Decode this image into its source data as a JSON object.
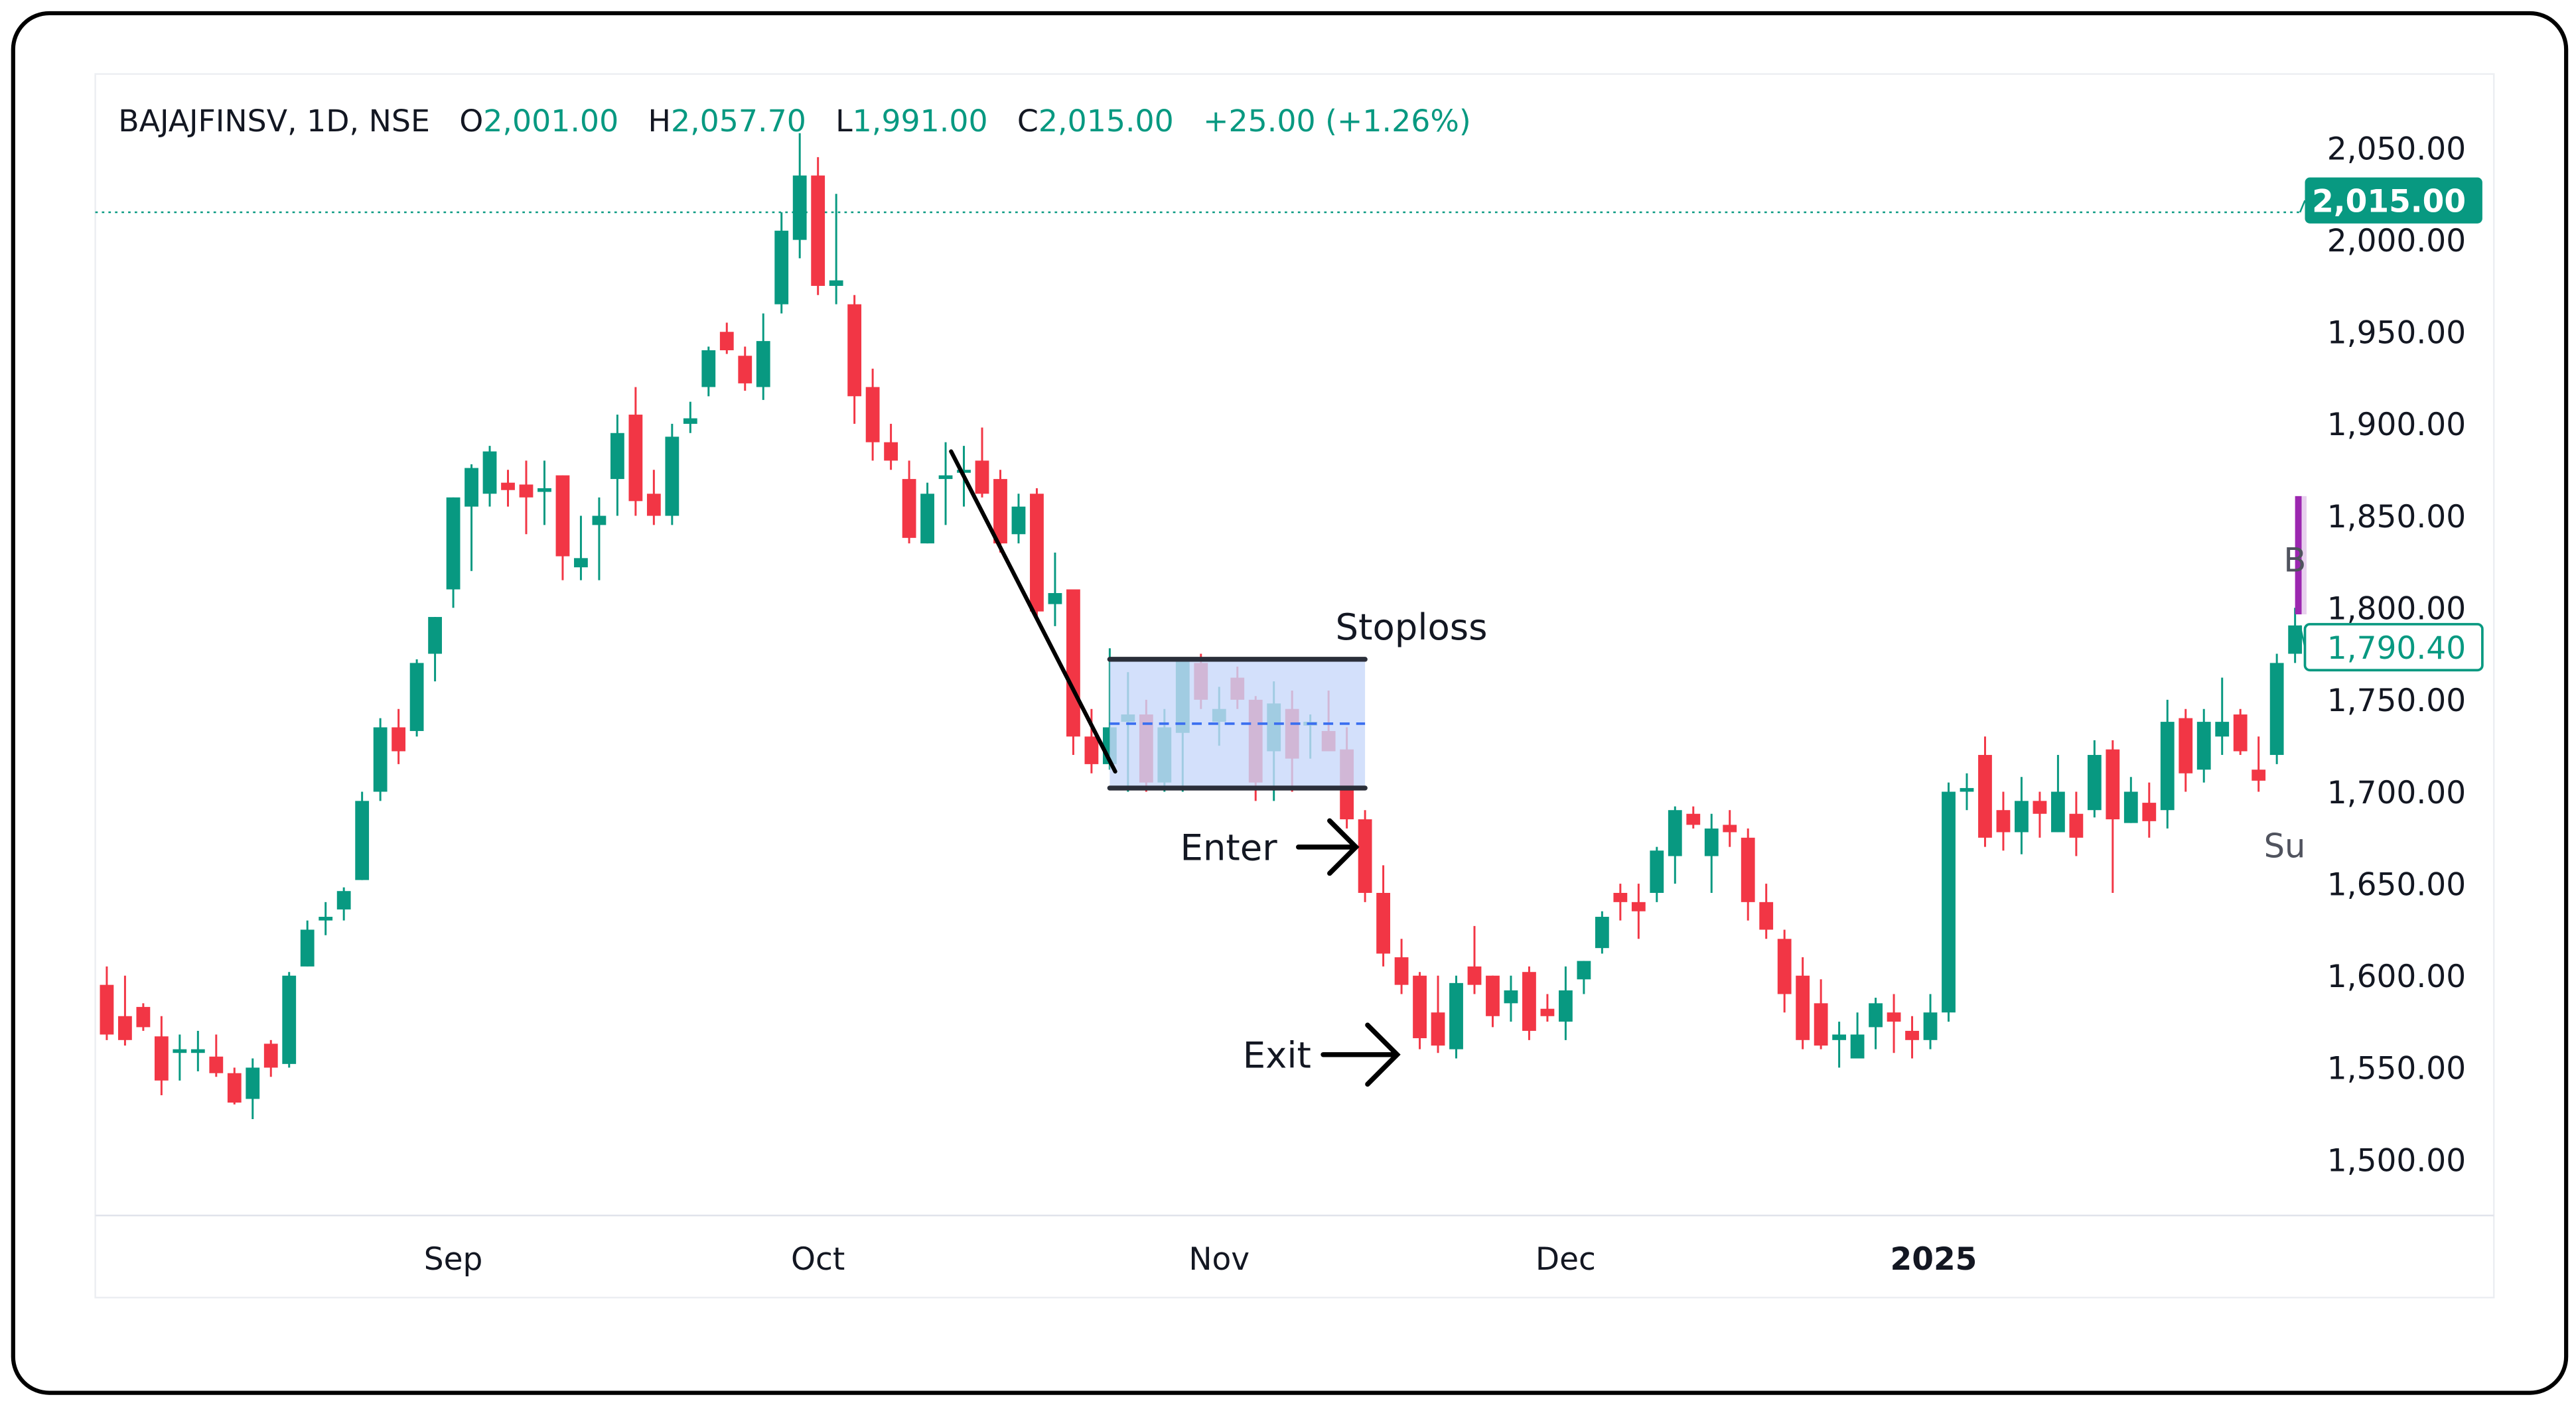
{
  "header": {
    "symbol": "BAJAJFINSV, 1D, NSE",
    "o_label": "O",
    "o_value": "2,001.00",
    "h_label": "H",
    "h_value": "2,057.70",
    "l_label": "L",
    "l_value": "1,991.00",
    "c_label": "C",
    "c_value": "2,015.00",
    "change": "+25.00 (+1.26%)"
  },
  "colors": {
    "up": "#089981",
    "down": "#f23645",
    "box_fill": "#c8d8fa",
    "box_edge": "#2a2e39",
    "mid_dash": "#3b6ff0",
    "bracket": "#9c27b0",
    "text": "#131722"
  },
  "chart_data": {
    "type": "candlestick",
    "title": "",
    "y_ticks": [
      "2,050.00",
      "2,000.00",
      "1,950.00",
      "1,900.00",
      "1,850.00",
      "1,800.00",
      "1,750.00",
      "1,700.00",
      "1,650.00",
      "1,600.00",
      "1,550.00",
      "1,500.00"
    ],
    "y_tick_values": [
      2050,
      2000,
      1950,
      1900,
      1850,
      1800,
      1750,
      1700,
      1650,
      1600,
      1550,
      1500
    ],
    "ylim": [
      1475,
      2080
    ],
    "x_ticks": [
      {
        "label": "Sep",
        "index": 19
      },
      {
        "label": "Oct",
        "index": 39
      },
      {
        "label": "Nov",
        "index": 61
      },
      {
        "label": "Dec",
        "index": 80
      },
      {
        "label": "2025",
        "index": 100,
        "bold": true
      }
    ],
    "last_price_label": "2,015.00",
    "last_price_value": 2015,
    "secondary_price_label": "1,790.40",
    "secondary_price_value": 1790.4,
    "ohlc": [
      [
        1595,
        1605,
        1565,
        1568
      ],
      [
        1578,
        1600,
        1562,
        1565
      ],
      [
        1583,
        1585,
        1570,
        1572
      ],
      [
        1567,
        1578,
        1535,
        1543
      ],
      [
        1558,
        1568,
        1543,
        1560
      ],
      [
        1558,
        1570,
        1548,
        1560
      ],
      [
        1556,
        1568,
        1545,
        1547
      ],
      [
        1547,
        1550,
        1530,
        1531
      ],
      [
        1533,
        1555,
        1522,
        1550
      ],
      [
        1563,
        1565,
        1545,
        1550
      ],
      [
        1552,
        1602,
        1550,
        1600
      ],
      [
        1605,
        1630,
        1605,
        1625
      ],
      [
        1630,
        1640,
        1622,
        1632
      ],
      [
        1636,
        1648,
        1630,
        1646
      ],
      [
        1652,
        1700,
        1652,
        1695
      ],
      [
        1700,
        1740,
        1695,
        1735
      ],
      [
        1735,
        1745,
        1715,
        1722
      ],
      [
        1733,
        1772,
        1730,
        1770
      ],
      [
        1775,
        1795,
        1760,
        1795
      ],
      [
        1810,
        1860,
        1800,
        1860
      ],
      [
        1855,
        1878,
        1820,
        1876
      ],
      [
        1862,
        1888,
        1855,
        1885
      ],
      [
        1868,
        1875,
        1855,
        1864
      ],
      [
        1867,
        1880,
        1840,
        1860
      ],
      [
        1863,
        1880,
        1845,
        1865
      ],
      [
        1872,
        1872,
        1815,
        1828
      ],
      [
        1822,
        1850,
        1815,
        1827
      ],
      [
        1845,
        1860,
        1815,
        1850
      ],
      [
        1870,
        1905,
        1850,
        1895
      ],
      [
        1905,
        1920,
        1850,
        1858
      ],
      [
        1862,
        1875,
        1845,
        1850
      ],
      [
        1850,
        1900,
        1845,
        1893
      ],
      [
        1900,
        1912,
        1895,
        1903
      ],
      [
        1920,
        1942,
        1915,
        1940
      ],
      [
        1950,
        1955,
        1938,
        1940
      ],
      [
        1937,
        1942,
        1918,
        1922
      ],
      [
        1920,
        1960,
        1913,
        1945
      ],
      [
        1965,
        2015,
        1960,
        2005
      ],
      [
        2000,
        2058,
        1990,
        2035
      ],
      [
        2035,
        2045,
        1970,
        1975
      ],
      [
        1975,
        2025,
        1965,
        1978
      ],
      [
        1965,
        1970,
        1900,
        1915
      ],
      [
        1920,
        1930,
        1880,
        1890
      ],
      [
        1890,
        1900,
        1875,
        1880
      ],
      [
        1870,
        1880,
        1835,
        1838
      ],
      [
        1835,
        1868,
        1835,
        1862
      ],
      [
        1870,
        1890,
        1845,
        1872
      ],
      [
        1874,
        1888,
        1855,
        1875
      ],
      [
        1880,
        1898,
        1860,
        1862
      ],
      [
        1870,
        1875,
        1830,
        1835
      ],
      [
        1840,
        1862,
        1835,
        1855
      ],
      [
        1862,
        1865,
        1795,
        1798
      ],
      [
        1802,
        1830,
        1790,
        1808
      ],
      [
        1810,
        1810,
        1720,
        1730
      ],
      [
        1730,
        1745,
        1710,
        1715
      ],
      [
        1715,
        1778,
        1712,
        1735
      ],
      [
        1738,
        1765,
        1700,
        1742
      ],
      [
        1742,
        1750,
        1700,
        1705
      ],
      [
        1705,
        1745,
        1700,
        1735
      ],
      [
        1732,
        1772,
        1700,
        1772
      ],
      [
        1770,
        1775,
        1745,
        1750
      ],
      [
        1738,
        1757,
        1725,
        1745
      ],
      [
        1762,
        1768,
        1745,
        1750
      ],
      [
        1750,
        1752,
        1695,
        1705
      ],
      [
        1722,
        1760,
        1695,
        1748
      ],
      [
        1745,
        1755,
        1700,
        1718
      ],
      [
        1736,
        1742,
        1718,
        1738
      ],
      [
        1733,
        1755,
        1725,
        1722
      ],
      [
        1723,
        1735,
        1680,
        1685
      ],
      [
        1685,
        1690,
        1640,
        1645
      ],
      [
        1645,
        1660,
        1605,
        1612
      ],
      [
        1610,
        1620,
        1590,
        1595
      ],
      [
        1600,
        1602,
        1560,
        1566
      ],
      [
        1580,
        1600,
        1558,
        1562
      ],
      [
        1560,
        1600,
        1555,
        1596
      ],
      [
        1605,
        1627,
        1590,
        1595
      ],
      [
        1600,
        1600,
        1572,
        1578
      ],
      [
        1585,
        1600,
        1575,
        1592
      ],
      [
        1602,
        1605,
        1565,
        1570
      ],
      [
        1582,
        1590,
        1575,
        1578
      ],
      [
        1575,
        1605,
        1565,
        1592
      ],
      [
        1598,
        1608,
        1590,
        1608
      ],
      [
        1615,
        1635,
        1612,
        1632
      ],
      [
        1645,
        1650,
        1630,
        1640
      ],
      [
        1640,
        1650,
        1620,
        1635
      ],
      [
        1645,
        1670,
        1640,
        1668
      ],
      [
        1665,
        1692,
        1650,
        1690
      ],
      [
        1688,
        1692,
        1680,
        1682
      ],
      [
        1665,
        1688,
        1645,
        1680
      ],
      [
        1682,
        1690,
        1670,
        1678
      ],
      [
        1675,
        1680,
        1630,
        1640
      ],
      [
        1640,
        1650,
        1620,
        1625
      ],
      [
        1620,
        1625,
        1580,
        1590
      ],
      [
        1600,
        1610,
        1560,
        1565
      ],
      [
        1585,
        1598,
        1560,
        1562
      ],
      [
        1565,
        1575,
        1550,
        1568
      ],
      [
        1555,
        1580,
        1555,
        1568
      ],
      [
        1572,
        1588,
        1560,
        1585
      ],
      [
        1580,
        1590,
        1558,
        1575
      ],
      [
        1570,
        1578,
        1555,
        1565
      ],
      [
        1565,
        1590,
        1560,
        1580
      ],
      [
        1580,
        1705,
        1575,
        1700
      ],
      [
        1700,
        1710,
        1690,
        1702
      ],
      [
        1720,
        1730,
        1670,
        1675
      ],
      [
        1690,
        1700,
        1668,
        1678
      ],
      [
        1678,
        1708,
        1666,
        1695
      ],
      [
        1695,
        1700,
        1675,
        1688
      ],
      [
        1678,
        1720,
        1678,
        1700
      ],
      [
        1688,
        1700,
        1665,
        1675
      ],
      [
        1690,
        1728,
        1686,
        1720
      ],
      [
        1723,
        1728,
        1645,
        1685
      ],
      [
        1683,
        1708,
        1683,
        1700
      ],
      [
        1694,
        1705,
        1675,
        1684
      ],
      [
        1690,
        1750,
        1680,
        1738
      ],
      [
        1740,
        1745,
        1700,
        1710
      ],
      [
        1712,
        1745,
        1705,
        1738
      ],
      [
        1730,
        1762,
        1720,
        1738
      ],
      [
        1742,
        1745,
        1720,
        1722
      ],
      [
        1712,
        1730,
        1700,
        1706
      ],
      [
        1720,
        1775,
        1715,
        1770
      ],
      [
        1775,
        1800,
        1770,
        1790.4
      ]
    ],
    "annotations": {
      "trendline": {
        "from": {
          "index": 46.3,
          "price": 1885
        },
        "to": {
          "index": 55.3,
          "price": 1711
        }
      },
      "range_box": {
        "from_index": 55,
        "to_index": 69,
        "top": 1772,
        "bottom": 1702,
        "mid": 1737
      },
      "stoploss_label": "Stoploss",
      "enter_label": "Enter",
      "exit_label": "Exit",
      "enter_arrow": {
        "index": 68.5,
        "price": 1686
      },
      "exit_arrow": {
        "index": 71.3,
        "price": 1566
      },
      "edge_label_top": "B",
      "edge_label_bottom": "Su"
    }
  }
}
